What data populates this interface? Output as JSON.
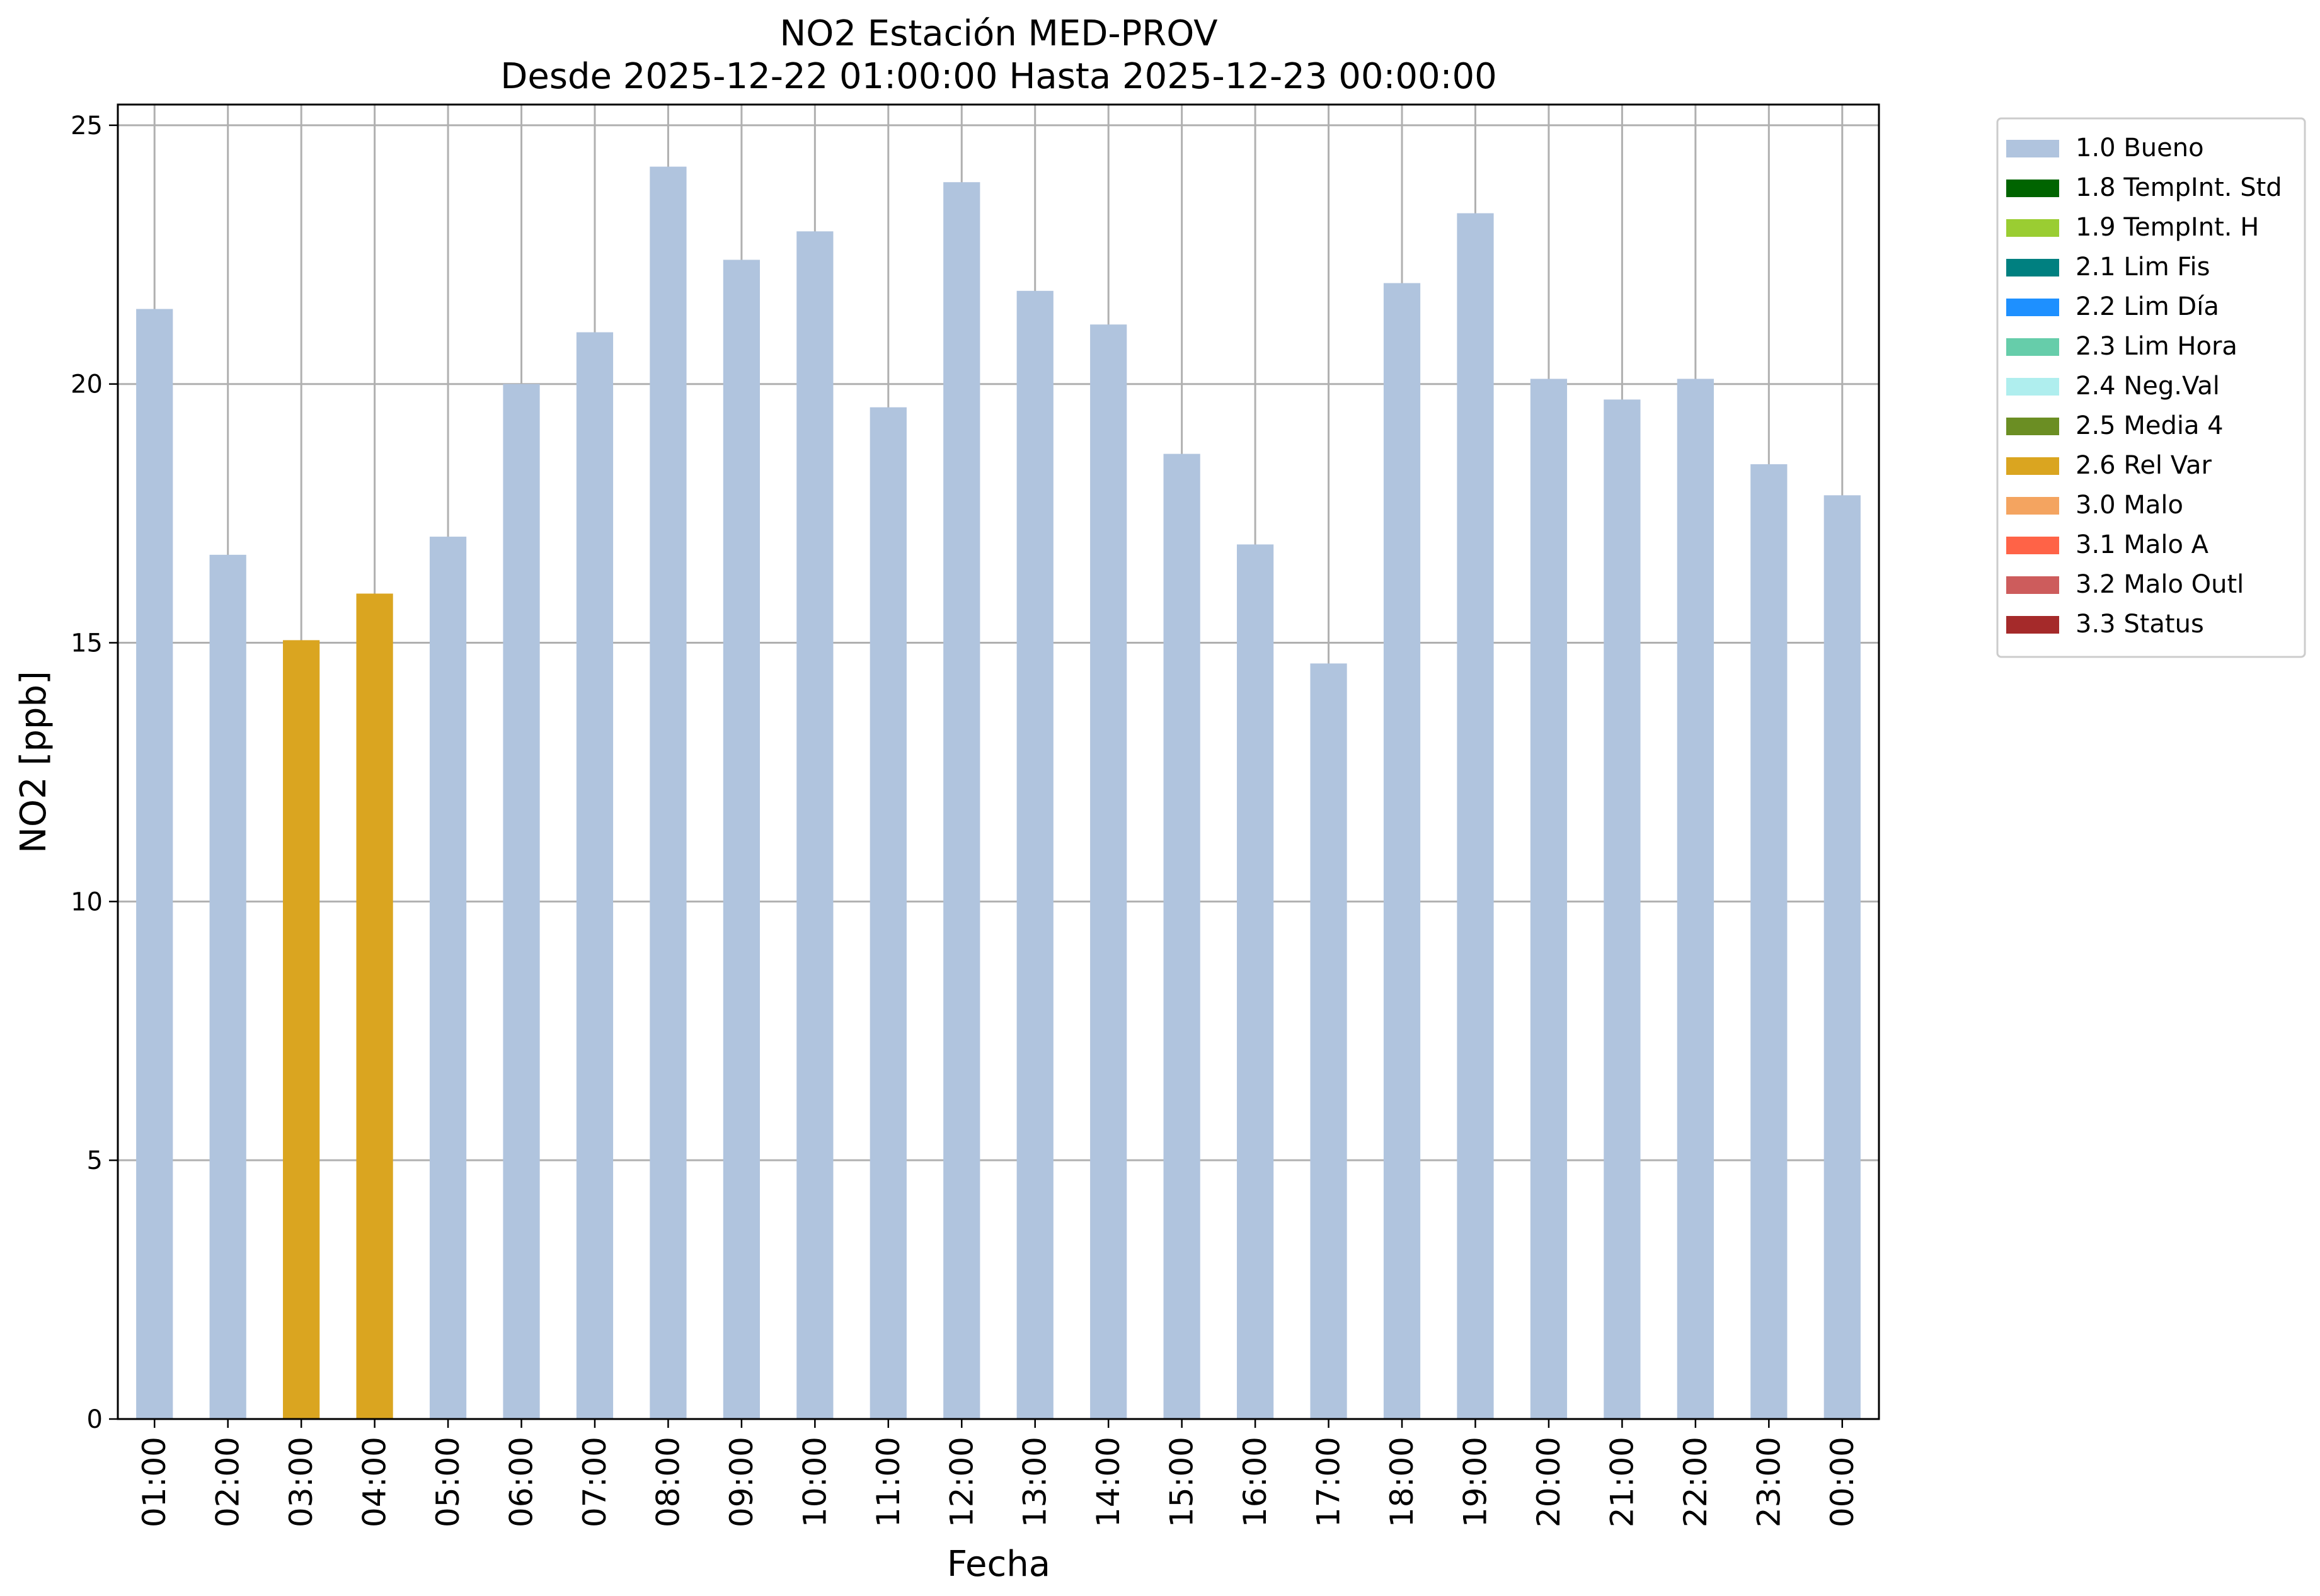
{
  "chart_data": {
    "type": "bar",
    "title": "NO2 Estación MED-PROV",
    "subtitle": "Desde 2025-12-22 01:00:00 Hasta 2025-12-23 00:00:00",
    "xlabel": "Fecha",
    "ylabel": "NO2 [ppb]",
    "ylim": [
      0,
      25.4
    ],
    "yticks": [
      "0",
      "5",
      "10",
      "15",
      "20",
      "25"
    ],
    "grid": true,
    "legend_position": "outside-top-right",
    "categories": [
      "01:00",
      "02:00",
      "03:00",
      "04:00",
      "05:00",
      "06:00",
      "07:00",
      "08:00",
      "09:00",
      "10:00",
      "11:00",
      "12:00",
      "13:00",
      "14:00",
      "15:00",
      "16:00",
      "17:00",
      "18:00",
      "19:00",
      "20:00",
      "21:00",
      "22:00",
      "23:00",
      "00:00"
    ],
    "values": [
      21.45,
      16.7,
      15.05,
      15.95,
      17.05,
      20.0,
      21.0,
      24.2,
      22.4,
      22.95,
      19.55,
      23.9,
      21.8,
      21.15,
      18.65,
      16.9,
      14.6,
      21.95,
      23.3,
      20.1,
      19.7,
      20.1,
      18.45,
      17.85
    ],
    "flags": [
      "1.0 Bueno",
      "1.0 Bueno",
      "2.6 Rel Var",
      "2.6 Rel Var",
      "1.0 Bueno",
      "1.0 Bueno",
      "1.0 Bueno",
      "1.0 Bueno",
      "1.0 Bueno",
      "1.0 Bueno",
      "1.0 Bueno",
      "1.0 Bueno",
      "1.0 Bueno",
      "1.0 Bueno",
      "1.0 Bueno",
      "1.0 Bueno",
      "1.0 Bueno",
      "1.0 Bueno",
      "1.0 Bueno",
      "1.0 Bueno",
      "1.0 Bueno",
      "1.0 Bueno",
      "1.0 Bueno",
      "1.0 Bueno"
    ],
    "legend": [
      {
        "label": "1.0 Bueno",
        "color": "#b0c4de"
      },
      {
        "label": "1.8 TempInt. Std",
        "color": "#006400"
      },
      {
        "label": "1.9 TempInt. H",
        "color": "#9acd32"
      },
      {
        "label": "2.1 Lim Fis",
        "color": "#008080"
      },
      {
        "label": "2.2 Lim Día",
        "color": "#1e90ff"
      },
      {
        "label": "2.3 Lim Hora",
        "color": "#66cdaa"
      },
      {
        "label": "2.4 Neg.Val",
        "color": "#afeeee"
      },
      {
        "label": "2.5 Media 4",
        "color": "#6b8e23"
      },
      {
        "label": "2.6 Rel Var",
        "color": "#daa520"
      },
      {
        "label": "3.0 Malo",
        "color": "#f4a460"
      },
      {
        "label": "3.1 Malo A",
        "color": "#ff6347"
      },
      {
        "label": "3.2 Malo Outl",
        "color": "#cd5c5c"
      },
      {
        "label": "3.3 Status",
        "color": "#a52a2a"
      }
    ]
  }
}
